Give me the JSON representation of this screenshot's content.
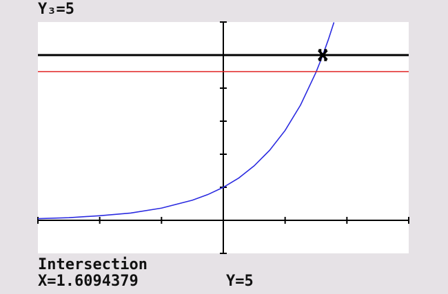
{
  "chart_data": {
    "type": "line",
    "function_label": "Y₃=5",
    "status": "Intersection",
    "x_readout": "X=1.6094379",
    "y_readout": "Y=5",
    "xlim": [
      -3,
      3
    ],
    "ylim": [
      -1,
      6
    ],
    "xticks": [
      -3,
      -2,
      -1,
      0,
      1,
      2,
      3
    ],
    "yticks": [
      -1,
      0,
      1,
      2,
      3,
      4,
      5,
      6
    ],
    "series": [
      {
        "color": "#2a2ae0",
        "x": [
          -3,
          -2.5,
          -2,
          -1.5,
          -1,
          -0.5,
          -0.25,
          0,
          0.25,
          0.5,
          0.75,
          1,
          1.25,
          1.5,
          1.6,
          1.7,
          1.79
        ],
        "values": [
          0.05,
          0.08,
          0.14,
          0.22,
          0.37,
          0.61,
          0.78,
          1,
          1.28,
          1.65,
          2.12,
          2.72,
          3.49,
          4.48,
          4.95,
          5.47,
          5.99
        ]
      },
      {
        "color": "#000000",
        "x": [
          -3,
          3
        ],
        "values": [
          5,
          5
        ]
      },
      {
        "color": "#e02020",
        "x": [
          -3,
          3
        ],
        "values": [
          4.5,
          4.5
        ]
      }
    ],
    "cursor": {
      "x": 1.6094379,
      "y": 5
    }
  }
}
